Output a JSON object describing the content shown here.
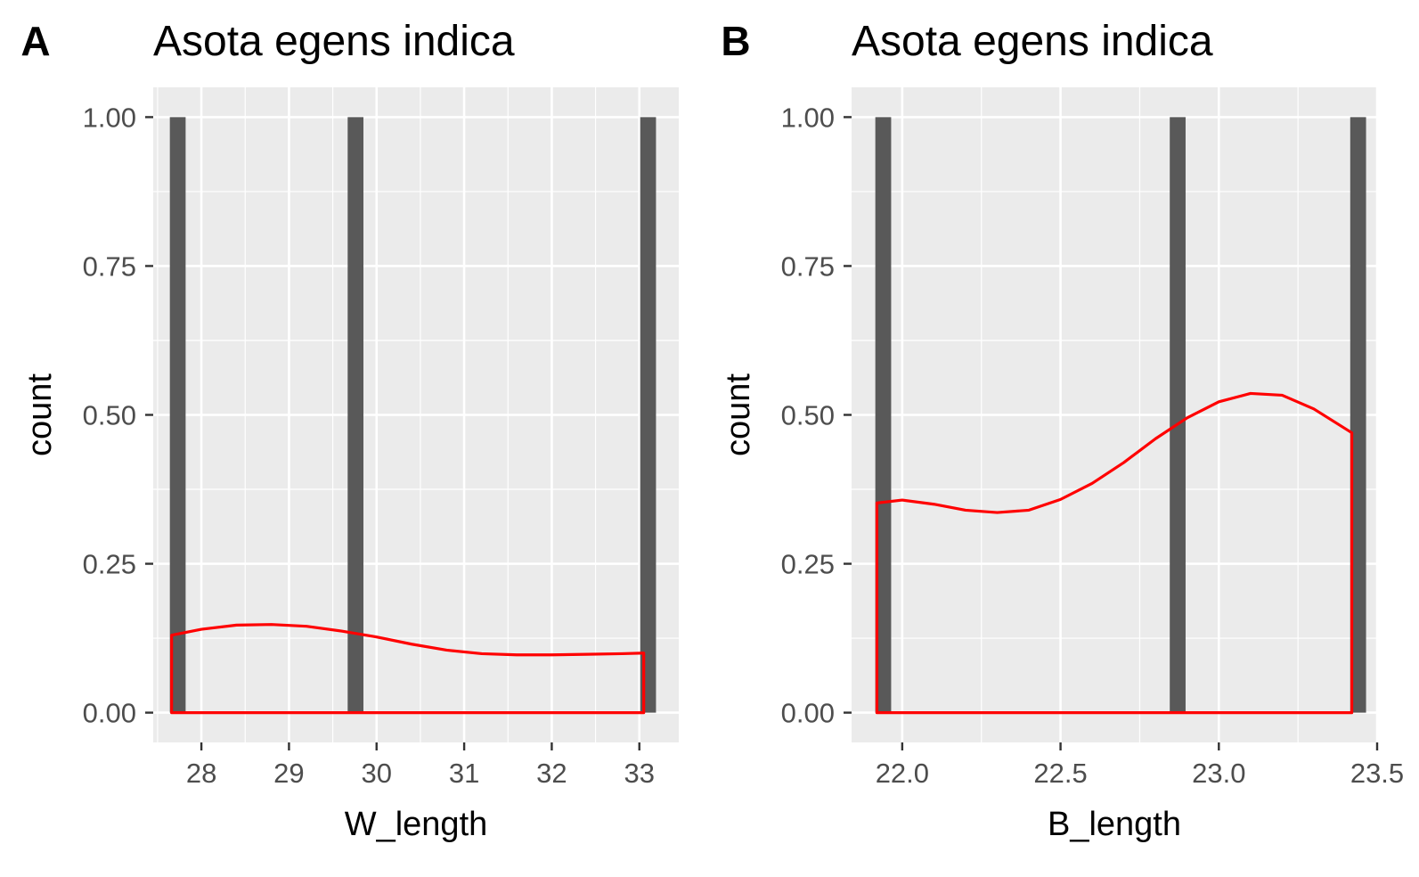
{
  "colors": {
    "panel_background": "#ebebeb",
    "grid": "#ffffff",
    "bar": "#595959",
    "density_line": "#ff0000",
    "tick": "#333333"
  },
  "chart_data": [
    {
      "type": "bar",
      "panel_tag": "A",
      "title": "Asota egens indica",
      "xlabel": "W_length",
      "ylabel": "count",
      "xlim": [
        27.45,
        33.45
      ],
      "ylim": [
        -0.05,
        1.05
      ],
      "x_ticks": [
        28,
        29,
        30,
        31,
        32,
        33
      ],
      "x_tick_labels": [
        "28",
        "29",
        "30",
        "31",
        "32",
        "33"
      ],
      "y_ticks": [
        0,
        0.25,
        0.5,
        0.75,
        1
      ],
      "y_tick_labels": [
        "0.00",
        "0.25",
        "0.50",
        "0.75",
        "1.00"
      ],
      "grid": true,
      "legend": "none",
      "bar_width": 0.18,
      "bars": [
        {
          "x": 27.73,
          "count": 1
        },
        {
          "x": 29.76,
          "count": 1
        },
        {
          "x": 33.1,
          "count": 1
        }
      ],
      "density": {
        "x": [
          27.66,
          28.0,
          28.4,
          28.8,
          29.2,
          29.6,
          30.0,
          30.4,
          30.8,
          31.2,
          31.6,
          32.0,
          32.4,
          32.8,
          33.05
        ],
        "y": [
          0.13,
          0.14,
          0.147,
          0.148,
          0.145,
          0.137,
          0.127,
          0.115,
          0.105,
          0.099,
          0.097,
          0.097,
          0.098,
          0.099,
          0.1
        ]
      }
    },
    {
      "type": "bar",
      "panel_tag": "B",
      "title": "Asota egens indica",
      "xlabel": "B_length",
      "ylabel": "count",
      "xlim": [
        21.84,
        23.5
      ],
      "ylim": [
        -0.05,
        1.05
      ],
      "x_ticks": [
        22.0,
        22.5,
        23.0,
        23.5
      ],
      "x_tick_labels": [
        "22.0",
        "22.5",
        "23.0",
        "23.5"
      ],
      "y_ticks": [
        0,
        0.25,
        0.5,
        0.75,
        1
      ],
      "y_tick_labels": [
        "0.00",
        "0.25",
        "0.50",
        "0.75",
        "1.00"
      ],
      "grid": true,
      "legend": "none",
      "bar_width": 0.05,
      "bars": [
        {
          "x": 21.94,
          "count": 1
        },
        {
          "x": 22.87,
          "count": 1
        },
        {
          "x": 23.44,
          "count": 1
        }
      ],
      "density": {
        "x": [
          21.92,
          22.0,
          22.1,
          22.2,
          22.3,
          22.4,
          22.5,
          22.6,
          22.7,
          22.8,
          22.9,
          23.0,
          23.1,
          23.2,
          23.3,
          23.42
        ],
        "y": [
          0.352,
          0.357,
          0.35,
          0.34,
          0.336,
          0.34,
          0.358,
          0.385,
          0.42,
          0.46,
          0.495,
          0.522,
          0.536,
          0.533,
          0.51,
          0.47
        ]
      }
    }
  ]
}
